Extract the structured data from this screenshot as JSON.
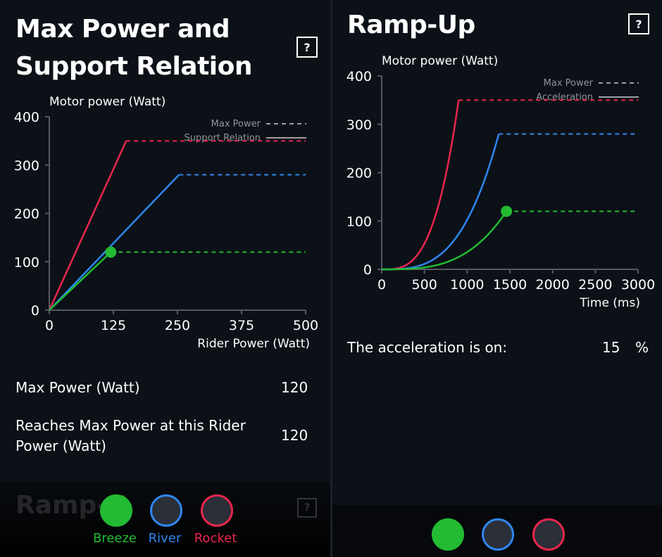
{
  "colors": {
    "breeze": "#22bb33",
    "river": "#2e86f0",
    "rocket": "#e8264e",
    "grid": "#555a61",
    "background": "#0c1117"
  },
  "max_power_section": {
    "title_line1": "Max Power and",
    "title_line2": "Support Relation",
    "help_label": "?",
    "max_power_label": "Max Power (Watt)",
    "max_power_value": "120",
    "reaches_label_line1": "Reaches Max Power at this Rider",
    "reaches_label_line2": "Power (Watt)",
    "reaches_value": "120"
  },
  "ramp_up_section": {
    "title": "Ramp-Up",
    "help_label": "?",
    "acceleration_label": "The acceleration is on:",
    "acceleration_value": "15",
    "acceleration_unit": "%"
  },
  "footer_left": {
    "ghost_title": "Ramp-U",
    "ghost_help": "?"
  },
  "modes": [
    {
      "name": "Breeze",
      "color": "#22bb33",
      "selected": true
    },
    {
      "name": "River",
      "color": "#2e86f0",
      "selected": false
    },
    {
      "name": "Rocket",
      "color": "#e8264e",
      "selected": false
    }
  ],
  "chart_data": [
    {
      "type": "line",
      "ylabel": "Motor power (Watt)",
      "xlabel": "Rider Power (Watt)",
      "xlim": [
        0,
        500
      ],
      "ylim": [
        0,
        400
      ],
      "xticks": [
        "0",
        "125",
        "250",
        "375",
        "500"
      ],
      "yticks": [
        "0",
        "100",
        "200",
        "300",
        "400"
      ],
      "legend": [
        "Max Power",
        "Support Relation"
      ],
      "legend_position": "top-right",
      "series": [
        {
          "name": "Rocket",
          "color": "#e8264e",
          "support": [
            [
              0,
              0
            ],
            [
              150,
              350
            ]
          ],
          "max_power": 350
        },
        {
          "name": "River",
          "color": "#2e86f0",
          "support": [
            [
              0,
              0
            ],
            [
              253,
              280
            ]
          ],
          "max_power": 280
        },
        {
          "name": "Breeze",
          "color": "#22bb33",
          "support": [
            [
              0,
              0
            ],
            [
              120,
              120
            ]
          ],
          "max_power": 120,
          "marker": [
            120,
            120
          ]
        }
      ]
    },
    {
      "type": "line",
      "ylabel": "Motor power (Watt)",
      "xlabel": "Time (ms)",
      "xlim": [
        0,
        3000
      ],
      "ylim": [
        0,
        400
      ],
      "xticks": [
        "0",
        "500",
        "1000",
        "1500",
        "2000",
        "2500",
        "3000"
      ],
      "yticks": [
        "0",
        "100",
        "200",
        "300",
        "400"
      ],
      "legend": [
        "Max Power",
        "Acceleration"
      ],
      "legend_position": "top-right",
      "series": [
        {
          "name": "Rocket",
          "color": "#e8264e",
          "ramp_end_ms": 900,
          "max_power": 350
        },
        {
          "name": "River",
          "color": "#2e86f0",
          "ramp_end_ms": 1370,
          "max_power": 280
        },
        {
          "name": "Breeze",
          "color": "#22bb33",
          "ramp_end_ms": 1460,
          "max_power": 120,
          "marker": [
            1460,
            120
          ]
        }
      ]
    }
  ]
}
